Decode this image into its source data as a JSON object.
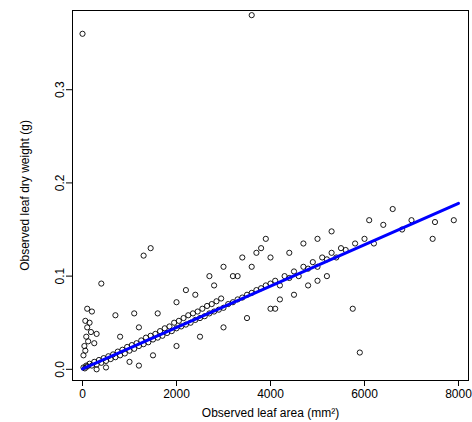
{
  "chart_data": {
    "type": "scatter",
    "x_label": "Observed leaf area (mm²)",
    "y_label": "Observed leaf dry weight (g)",
    "xlim": [
      -213,
      8213
    ],
    "ylim": [
      -0.012,
      0.385
    ],
    "xticks": [
      0,
      2000,
      4000,
      6000,
      8000
    ],
    "yticks": [
      {
        "value": 0,
        "label": "0.0"
      },
      0.1,
      0.2,
      0.3
    ],
    "grid": false,
    "series": [
      {
        "type": "scatter",
        "marker": "circle",
        "color": "#000000",
        "x": [
          20,
          50,
          80,
          100,
          150,
          200,
          250,
          300,
          350,
          400,
          450,
          500,
          550,
          600,
          650,
          700,
          750,
          800,
          850,
          900,
          950,
          1000,
          1050,
          1100,
          1150,
          1200,
          1250,
          1300,
          1350,
          1400,
          1450,
          1500,
          1550,
          1600,
          1650,
          1700,
          1750,
          1800,
          1850,
          1900,
          1950,
          2000,
          2050,
          2100,
          2150,
          2200,
          2250,
          2300,
          2350,
          2400,
          2450,
          2500,
          2550,
          2600,
          2650,
          2700,
          2750,
          2800,
          2850,
          2900,
          2950,
          3000,
          3100,
          3200,
          3300,
          3400,
          3500,
          3600,
          3700,
          3800,
          3900,
          4000,
          500,
          1000,
          1500,
          2000,
          2500,
          3000,
          3500,
          4000,
          1200,
          300,
          800,
          1200,
          1600,
          2000,
          2400,
          2800,
          3200,
          3600,
          2200,
          2700,
          20,
          40,
          60,
          80,
          100,
          120,
          150,
          180,
          200,
          100,
          250,
          300,
          60,
          0,
          3600,
          1300,
          1450,
          400,
          700,
          5900,
          5750,
          1100,
          4100,
          4200,
          4300,
          4400,
          4500,
          4600,
          4700,
          4800,
          4900,
          5000,
          5100,
          5200,
          5300,
          5400,
          5500,
          5600,
          5800,
          6000,
          6100,
          6200,
          6400,
          6600,
          6800,
          7000,
          7450,
          7500,
          7900,
          4200,
          4500,
          4800,
          5000,
          5200,
          4400,
          4700,
          5000,
          5300,
          3800,
          3900,
          4000,
          3700,
          4100,
          3300,
          3000,
          3400
        ],
        "values": [
          0.002,
          0.001,
          0.004,
          0.003,
          0.006,
          0.004,
          0.008,
          0.005,
          0.01,
          0.007,
          0.012,
          0.009,
          0.014,
          0.011,
          0.016,
          0.013,
          0.019,
          0.015,
          0.021,
          0.017,
          0.024,
          0.02,
          0.026,
          0.022,
          0.028,
          0.025,
          0.031,
          0.027,
          0.034,
          0.029,
          0.036,
          0.032,
          0.038,
          0.034,
          0.041,
          0.036,
          0.044,
          0.039,
          0.046,
          0.041,
          0.05,
          0.044,
          0.052,
          0.046,
          0.055,
          0.048,
          0.058,
          0.05,
          0.06,
          0.053,
          0.062,
          0.055,
          0.065,
          0.057,
          0.068,
          0.06,
          0.07,
          0.062,
          0.073,
          0.064,
          0.076,
          0.066,
          0.07,
          0.072,
          0.075,
          0.077,
          0.08,
          0.082,
          0.085,
          0.087,
          0.09,
          0.092,
          0.002,
          0.008,
          0.015,
          0.025,
          0.035,
          0.045,
          0.055,
          0.065,
          0.004,
          0.0,
          0.035,
          0.045,
          0.06,
          0.072,
          0.08,
          0.09,
          0.1,
          0.11,
          0.085,
          0.1,
          0.015,
          0.025,
          0.02,
          0.035,
          0.045,
          0.03,
          0.05,
          0.04,
          0.062,
          0.065,
          0.028,
          0.038,
          0.052,
          0.36,
          0.38,
          0.122,
          0.13,
          0.092,
          0.058,
          0.018,
          0.065,
          0.06,
          0.095,
          0.09,
          0.1,
          0.098,
          0.105,
          0.1,
          0.11,
          0.108,
          0.115,
          0.11,
          0.12,
          0.118,
          0.125,
          0.12,
          0.13,
          0.128,
          0.135,
          0.14,
          0.16,
          0.135,
          0.155,
          0.172,
          0.15,
          0.16,
          0.14,
          0.158,
          0.16,
          0.075,
          0.08,
          0.09,
          0.095,
          0.1,
          0.125,
          0.135,
          0.14,
          0.148,
          0.13,
          0.14,
          0.12,
          0.125,
          0.065,
          0.1,
          0.11,
          0.12
        ]
      },
      {
        "type": "line",
        "line_style": "solid",
        "color": "#0000ff",
        "x": [
          0,
          8000
        ],
        "values": [
          0.0005,
          0.178
        ]
      }
    ]
  }
}
